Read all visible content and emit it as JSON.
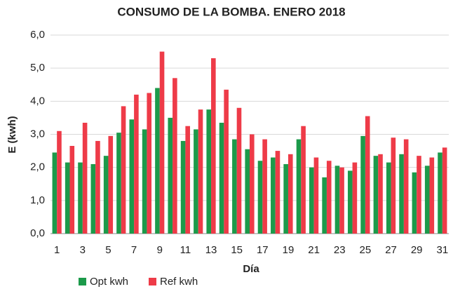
{
  "chart_data": {
    "type": "bar",
    "title": "CONSUMO DE LA BOMBA. ENERO 2018",
    "x_label": "Día",
    "y_label": "E (kwh)",
    "categories": [
      "1",
      null,
      "3",
      null,
      "5",
      null,
      "7",
      null,
      "9",
      null,
      "11",
      null,
      "13",
      null,
      "15",
      null,
      "17",
      null,
      "19",
      null,
      "21",
      null,
      "23",
      null,
      "25",
      null,
      "27",
      null,
      "29",
      null,
      "31"
    ],
    "series": [
      {
        "name": "Opt kwh",
        "color": "#1c9a4a",
        "values": [
          2.45,
          2.15,
          2.15,
          2.1,
          2.35,
          3.05,
          3.45,
          3.15,
          4.4,
          3.5,
          2.8,
          3.15,
          3.75,
          3.35,
          2.85,
          2.55,
          2.2,
          2.3,
          2.1,
          2.85,
          2.0,
          1.7,
          2.05,
          1.9,
          2.95,
          2.35,
          2.15,
          2.4,
          1.85,
          2.05,
          2.45
        ]
      },
      {
        "name": "Ref kwh",
        "color": "#ee3b48",
        "values": [
          3.1,
          2.65,
          3.35,
          2.8,
          2.95,
          3.85,
          4.2,
          4.25,
          5.5,
          4.7,
          3.25,
          3.75,
          5.3,
          4.35,
          3.8,
          3.0,
          2.85,
          2.5,
          2.4,
          3.25,
          2.3,
          2.2,
          2.0,
          2.15,
          3.55,
          2.4,
          2.9,
          2.85,
          2.35,
          2.3,
          2.6
        ]
      }
    ],
    "ylim": [
      0,
      6
    ],
    "yticks": [
      {
        "value": 0,
        "label": "0,0"
      },
      {
        "value": 1,
        "label": "1,0"
      },
      {
        "value": 2,
        "label": "2,0"
      },
      {
        "value": 3,
        "label": "3,0"
      },
      {
        "value": 4,
        "label": "4,0"
      },
      {
        "value": 5,
        "label": "5,0"
      },
      {
        "value": 6,
        "label": "6,0"
      }
    ],
    "grid": true,
    "legend": "bottom"
  }
}
